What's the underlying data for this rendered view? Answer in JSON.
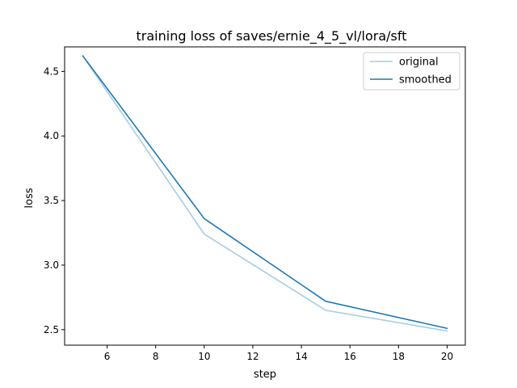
{
  "chart_data": {
    "type": "line",
    "title": "training loss of saves/ernie_4_5_vl/lora/sft",
    "xlabel": "step",
    "ylabel": "loss",
    "xlim": [
      4.25,
      20.75
    ],
    "ylim": [
      2.38,
      4.69
    ],
    "xticks": [
      6,
      8,
      10,
      12,
      14,
      16,
      18,
      20
    ],
    "xtick_labels": [
      "6",
      "8",
      "10",
      "12",
      "14",
      "16",
      "18",
      "20"
    ],
    "yticks": [
      2.5,
      3.0,
      3.5,
      4.0,
      4.5
    ],
    "ytick_labels": [
      "2.5",
      "3.0",
      "3.5",
      "4.0",
      "4.5"
    ],
    "grid": false,
    "legend_position": "top-right",
    "series": [
      {
        "name": "original",
        "color": "#a6cde2",
        "x": [
          5,
          10,
          15,
          20
        ],
        "y": [
          4.62,
          3.24,
          2.65,
          2.49
        ]
      },
      {
        "name": "smoothed",
        "color": "#1f78b4",
        "x": [
          5,
          10,
          15,
          20
        ],
        "y": [
          4.62,
          3.36,
          2.72,
          2.51
        ]
      }
    ]
  }
}
